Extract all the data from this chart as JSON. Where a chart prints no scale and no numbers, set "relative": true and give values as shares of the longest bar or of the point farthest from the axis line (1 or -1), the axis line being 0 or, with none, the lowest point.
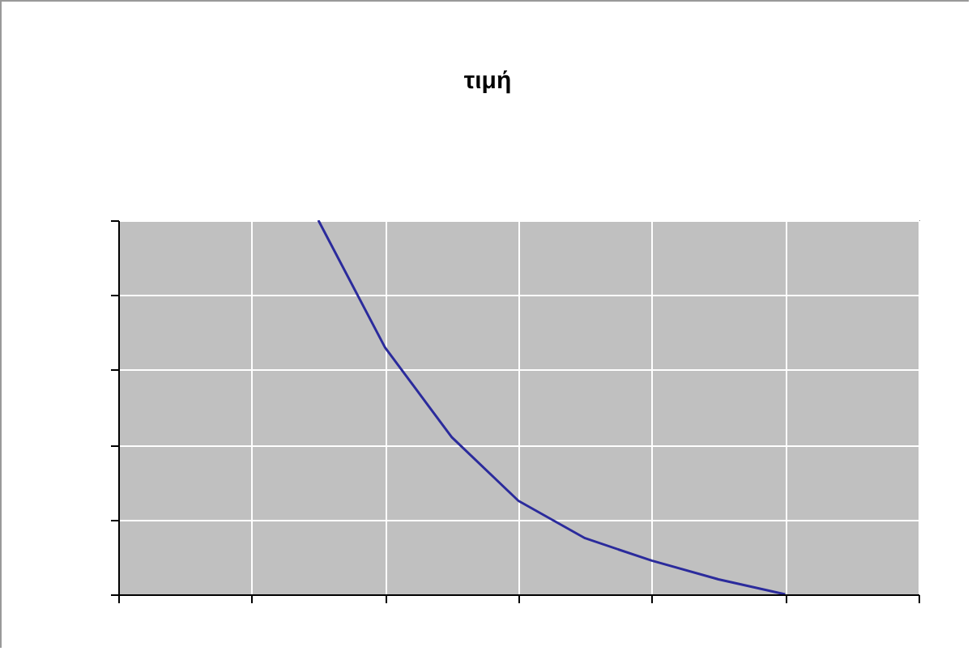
{
  "chart_data": {
    "type": "line",
    "title": "τιμή",
    "relative": true,
    "grid": true,
    "color": "#2b2b9c",
    "categories": [
      null,
      null,
      null,
      null,
      null,
      null,
      null,
      null,
      null,
      null,
      null,
      null,
      null
    ],
    "values": [
      null,
      null,
      null,
      1,
      0.66,
      0.42,
      0.25,
      0.15,
      0.09,
      0.04,
      0,
      null,
      null
    ]
  }
}
